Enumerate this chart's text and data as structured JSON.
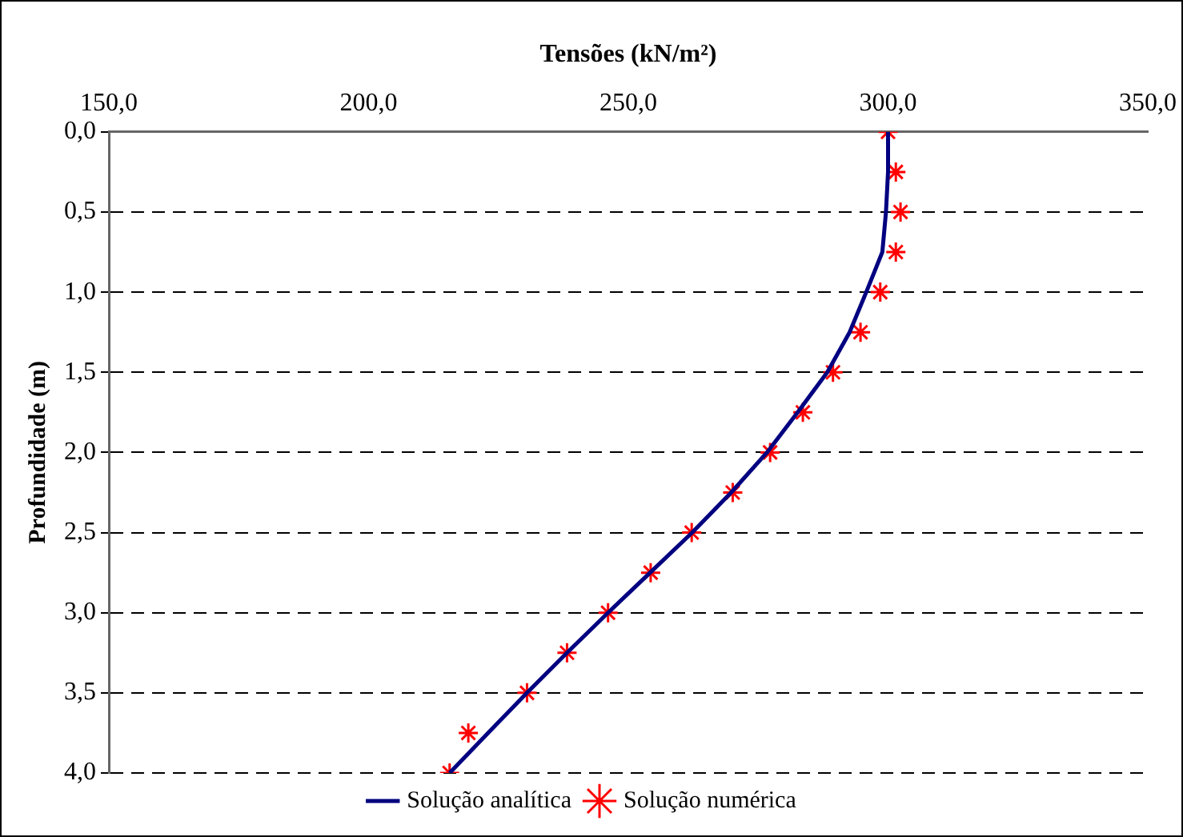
{
  "chart_data": {
    "type": "line",
    "xlabel": "Tensões (kN/m²)",
    "ylabel": "Profundidade (m)",
    "xlim": [
      150,
      350
    ],
    "xticks": [
      {
        "value": 150,
        "label": "150,0"
      },
      {
        "value": 200,
        "label": "200,0"
      },
      {
        "value": 250,
        "label": "250,0"
      },
      {
        "value": 300,
        "label": "300,0"
      },
      {
        "value": 350,
        "label": "350,0"
      }
    ],
    "ylim": [
      4,
      0
    ],
    "yticks": [
      {
        "value": 0,
        "label": "0,0"
      },
      {
        "value": 0.5,
        "label": "0,5"
      },
      {
        "value": 1,
        "label": "1,0"
      },
      {
        "value": 1.5,
        "label": "1,5"
      },
      {
        "value": 2,
        "label": "2,0"
      },
      {
        "value": 2.5,
        "label": "2,5"
      },
      {
        "value": 3,
        "label": "3,0"
      },
      {
        "value": 3.5,
        "label": "3,5"
      },
      {
        "value": 4,
        "label": "4,0"
      }
    ],
    "grid": "y",
    "legend": "bottom",
    "series": [
      {
        "name": "Solução analítica",
        "type": "line",
        "color": "#000080",
        "marker": "none",
        "line_style": "solid",
        "x": [
          300,
          300,
          299.6,
          298.9,
          295.8,
          292.6,
          288.3,
          282.6,
          276.7,
          269.8,
          262.3,
          254.2,
          246.1,
          238.2,
          230.5,
          223,
          215.6
        ],
        "values": [
          0,
          0.25,
          0.5,
          0.75,
          1,
          1.25,
          1.5,
          1.75,
          2,
          2.25,
          2.5,
          2.75,
          3,
          3.25,
          3.5,
          3.75,
          4
        ]
      },
      {
        "name": "Solução numérica",
        "type": "scatter",
        "color": "#ff0000",
        "marker": "cross",
        "x": [
          300,
          301.5,
          302.4,
          301.5,
          298.5,
          294.7,
          289.4,
          283.6,
          277.3,
          270.1,
          262.2,
          254.3,
          246.1,
          238.2,
          230.5,
          219.2,
          215.6
        ],
        "values": [
          0,
          0.25,
          0.5,
          0.75,
          1,
          1.25,
          1.5,
          1.75,
          2,
          2.25,
          2.5,
          2.75,
          3,
          3.25,
          3.5,
          3.75,
          4
        ]
      }
    ]
  }
}
